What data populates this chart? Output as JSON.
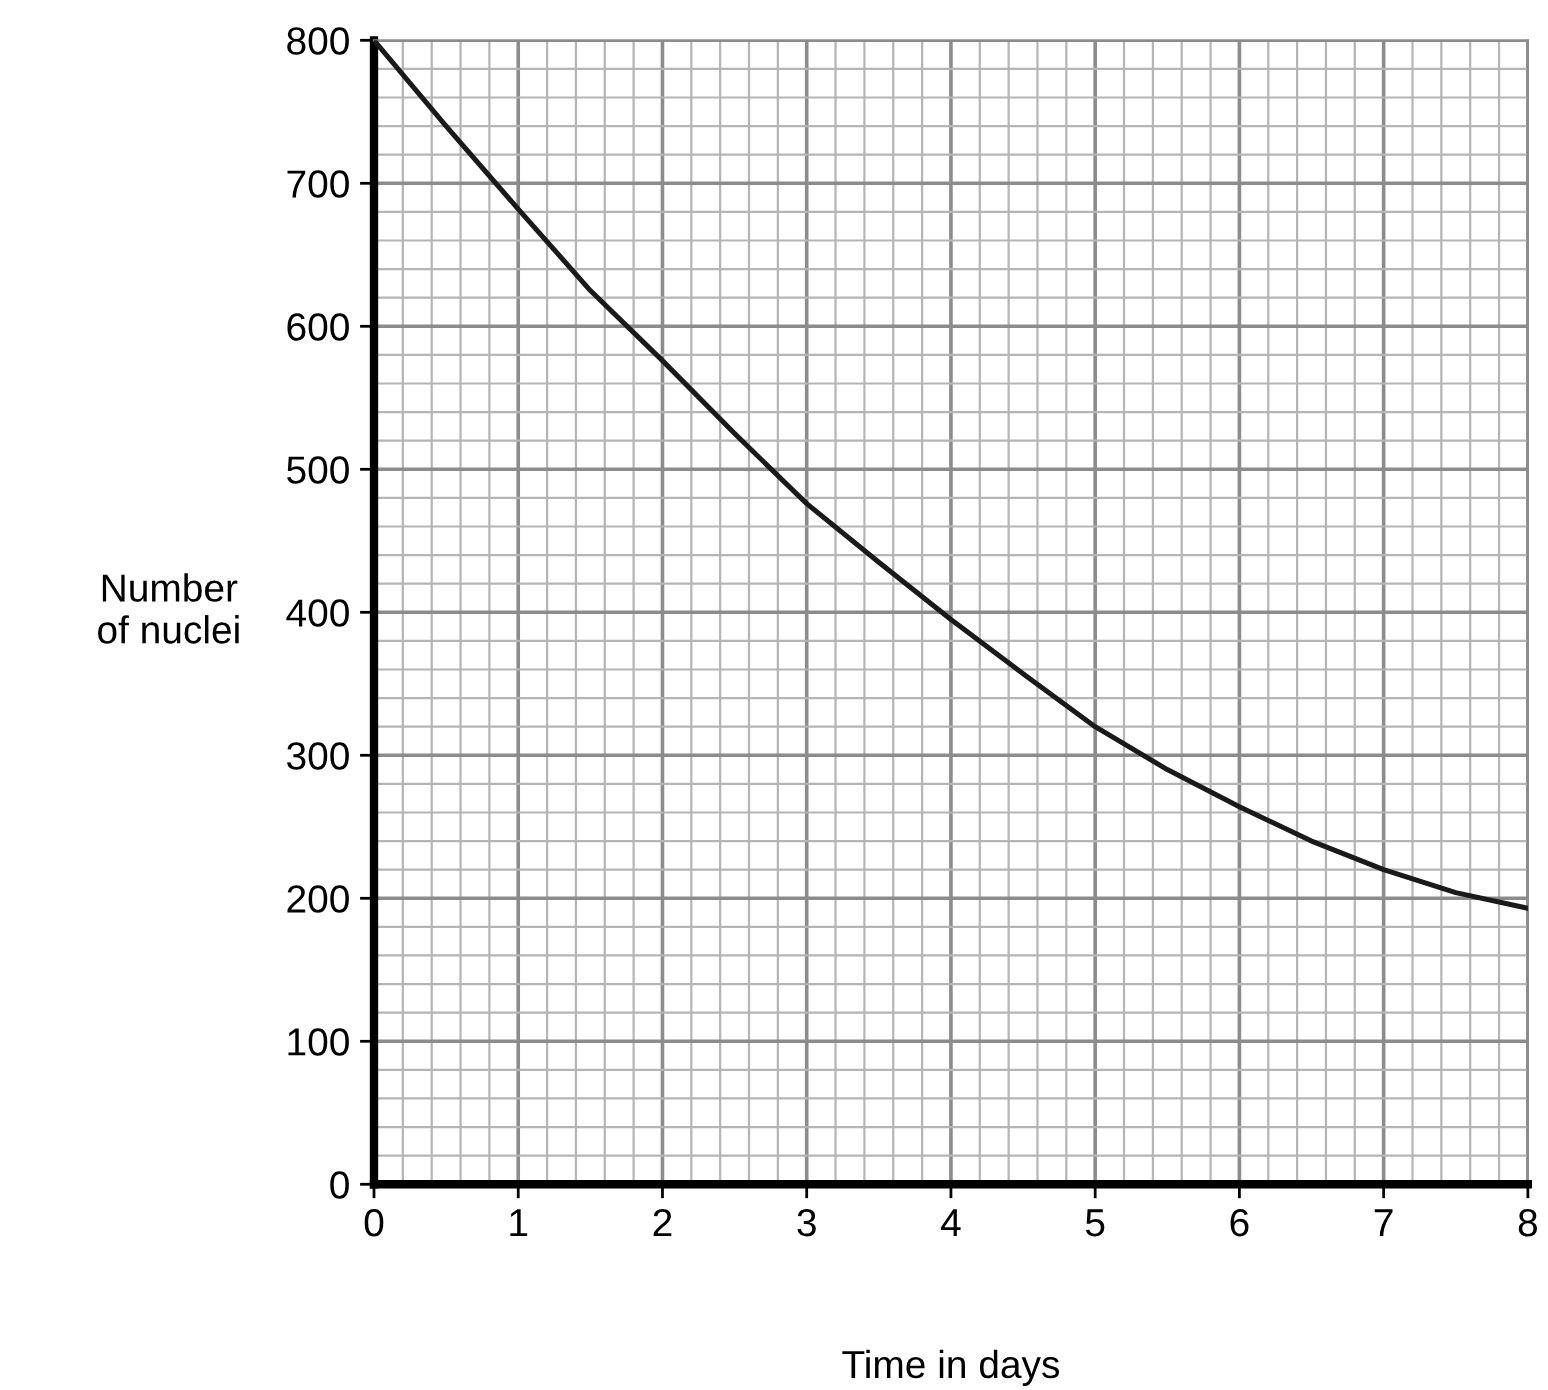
{
  "chart_data": {
    "type": "line",
    "xlabel": "Time in days",
    "ylabel": "Number\nof nuclei",
    "x": [
      0,
      0.5,
      1,
      1.5,
      2,
      2.5,
      3,
      3.5,
      4,
      4.5,
      5,
      5.5,
      6,
      6.5,
      7,
      7.5,
      8
    ],
    "series": [
      {
        "color": "#1a1a1a",
        "values": [
          800,
          740,
          682,
          625,
          576,
          525,
          476,
          435,
          395,
          357,
          320,
          290,
          264,
          240,
          220,
          204,
          193
        ]
      }
    ],
    "xlim": [
      0,
      8
    ],
    "ylim": [
      0,
      800
    ],
    "xticks": [
      0,
      1,
      2,
      3,
      4,
      5,
      6,
      7,
      8
    ],
    "yticks": [
      0,
      100,
      200,
      300,
      400,
      500,
      600,
      700,
      800
    ],
    "grid": true,
    "legend": false,
    "marker": "none",
    "line_style": "solid"
  }
}
